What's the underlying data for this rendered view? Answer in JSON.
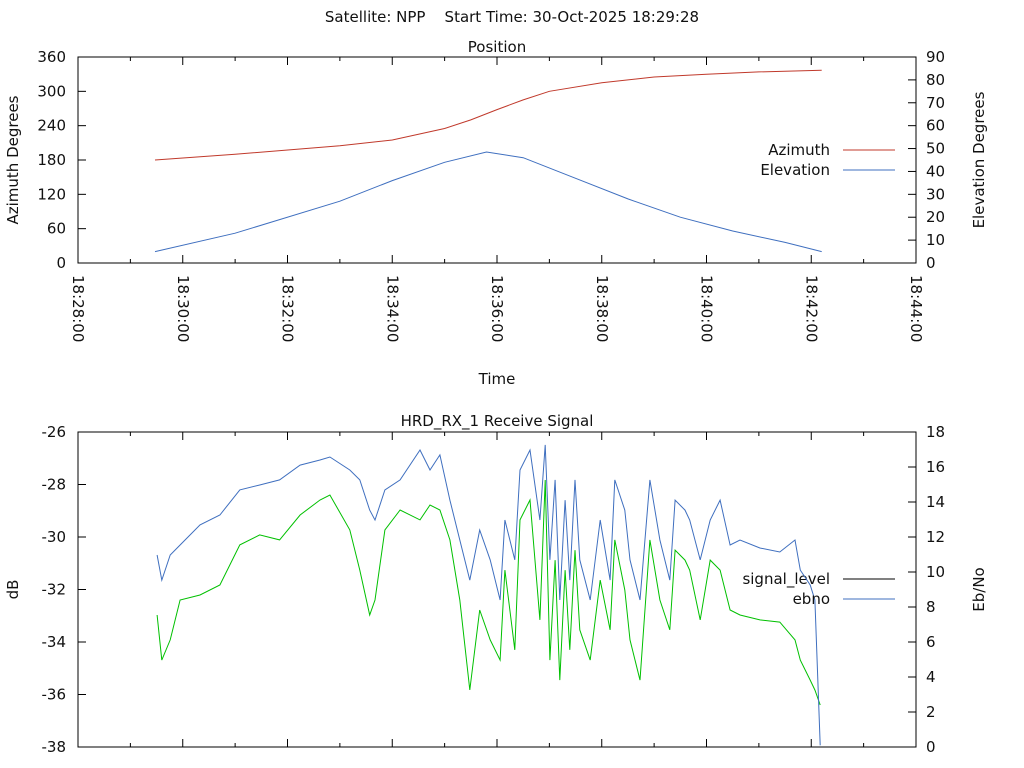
{
  "header": {
    "title": "Satellite: NPP    Start Time: 30-Oct-2025 18:29:28"
  },
  "chart_data": [
    {
      "type": "line",
      "title": "Position",
      "xlabel": "Time",
      "ylabel": "Azimuth Degrees",
      "y2label": "Elevation Degrees",
      "x_unit": "minutes after 18:28:00",
      "xlim": [
        0,
        16
      ],
      "ylim": [
        0,
        360
      ],
      "y2lim": [
        0,
        90
      ],
      "xticks": [
        "18:28:00",
        "18:30:00",
        "18:32:00",
        "18:34:00",
        "18:36:00",
        "18:38:00",
        "18:40:00",
        "18:42:00",
        "18:44:00"
      ],
      "yticks": [
        "0",
        "60",
        "120",
        "180",
        "240",
        "300",
        "360"
      ],
      "y2ticks": [
        "0",
        "10",
        "20",
        "30",
        "40",
        "50",
        "60",
        "70",
        "80",
        "90"
      ],
      "legend_position": "right",
      "series": [
        {
          "name": "Azimuth",
          "axis": "y",
          "color": "#c0392b",
          "x": [
            1.47,
            3,
            5,
            6,
            7,
            7.5,
            8,
            8.5,
            9,
            10,
            11,
            12,
            13,
            14.2
          ],
          "values": [
            180,
            190,
            205,
            215,
            235,
            250,
            268,
            285,
            300,
            315,
            325,
            330,
            334,
            337
          ]
        },
        {
          "name": "Elevation",
          "axis": "y2",
          "color": "#3f6fbf",
          "x": [
            1.47,
            3,
            5,
            6,
            7,
            7.8,
            8.5,
            9.5,
            10.5,
            11.5,
            12.5,
            13.5,
            14.2
          ],
          "values": [
            5,
            13,
            27,
            36,
            44,
            48.5,
            46,
            37,
            28,
            20,
            14,
            9,
            5
          ]
        }
      ]
    },
    {
      "type": "line",
      "title": "HRD_RX_1 Receive Signal",
      "ylabel": "dB",
      "y2label": "Eb/No",
      "xlim": [
        0,
        16
      ],
      "ylim": [
        -38,
        -26
      ],
      "y2lim": [
        0,
        18
      ],
      "yticks": [
        "-38",
        "-36",
        "-34",
        "-32",
        "-30",
        "-28",
        "-26"
      ],
      "y2ticks": [
        "0",
        "2",
        "4",
        "6",
        "8",
        "10",
        "12",
        "14",
        "16",
        "18"
      ],
      "legend_position": "right",
      "x": [
        1.51,
        1.6,
        1.76,
        1.95,
        2.33,
        2.71,
        3.09,
        3.47,
        3.85,
        4.24,
        4.62,
        4.81,
        5.19,
        5.38,
        5.57,
        5.67,
        5.86,
        6.15,
        6.53,
        6.72,
        6.91,
        7.1,
        7.29,
        7.48,
        7.67,
        7.87,
        8.06,
        8.15,
        8.34,
        8.44,
        8.63,
        8.82,
        8.92,
        9.01,
        9.11,
        9.2,
        9.3,
        9.39,
        9.49,
        9.58,
        9.78,
        9.97,
        10.16,
        10.25,
        10.44,
        10.54,
        10.73,
        10.92,
        11.11,
        11.3,
        11.4,
        11.59,
        11.68,
        11.88,
        12.07,
        12.26,
        12.45,
        12.64,
        13.02,
        13.4,
        13.69,
        13.79,
        13.98,
        14.07,
        14.17
      ],
      "series": [
        {
          "name": "signal_level",
          "axis": "y",
          "color": "#00c000",
          "legend_color": "#000000",
          "values": [
            -32.97,
            -34.69,
            -33.92,
            -32.4,
            -32.21,
            -31.83,
            -30.3,
            -29.92,
            -30.11,
            -29.16,
            -28.59,
            -28.4,
            -29.73,
            -31.26,
            -32.97,
            -32.4,
            -29.73,
            -28.97,
            -29.35,
            -28.78,
            -28.97,
            -30.11,
            -32.4,
            -35.83,
            -32.78,
            -33.92,
            -34.69,
            -31.26,
            -34.3,
            -29.35,
            -28.59,
            -33.16,
            -27.83,
            -34.69,
            -30.88,
            -35.45,
            -31.26,
            -34.3,
            -30.5,
            -33.54,
            -34.69,
            -31.64,
            -33.54,
            -30.11,
            -32.02,
            -33.92,
            -35.45,
            -30.11,
            -32.4,
            -33.54,
            -30.5,
            -30.88,
            -31.26,
            -33.16,
            -30.88,
            -31.26,
            -32.78,
            -32.97,
            -33.16,
            -33.24,
            -33.92,
            -34.69,
            -35.45,
            -35.83,
            -36.4
          ]
        },
        {
          "name": "ebno",
          "axis": "y2",
          "color": "#3f6fbf",
          "legend_color": "#3f6fbf",
          "values": [
            10.97,
            9.54,
            10.97,
            11.54,
            12.69,
            13.26,
            14.69,
            14.97,
            15.26,
            16.11,
            16.4,
            16.57,
            15.83,
            15.26,
            13.54,
            12.97,
            14.69,
            15.26,
            16.97,
            15.83,
            16.69,
            14.11,
            11.83,
            9.54,
            12.4,
            10.69,
            8.4,
            12.97,
            10.69,
            15.83,
            16.97,
            12.97,
            17.26,
            10.69,
            15.26,
            8.4,
            14.11,
            9.54,
            15.26,
            10.69,
            8.4,
            12.97,
            9.54,
            15.26,
            13.54,
            10.69,
            8.4,
            15.26,
            11.83,
            9.54,
            14.11,
            13.54,
            12.97,
            10.69,
            12.97,
            14.11,
            11.54,
            11.83,
            11.37,
            11.14,
            11.83,
            10.11,
            9.26,
            8.4,
            0.1
          ]
        }
      ]
    }
  ]
}
